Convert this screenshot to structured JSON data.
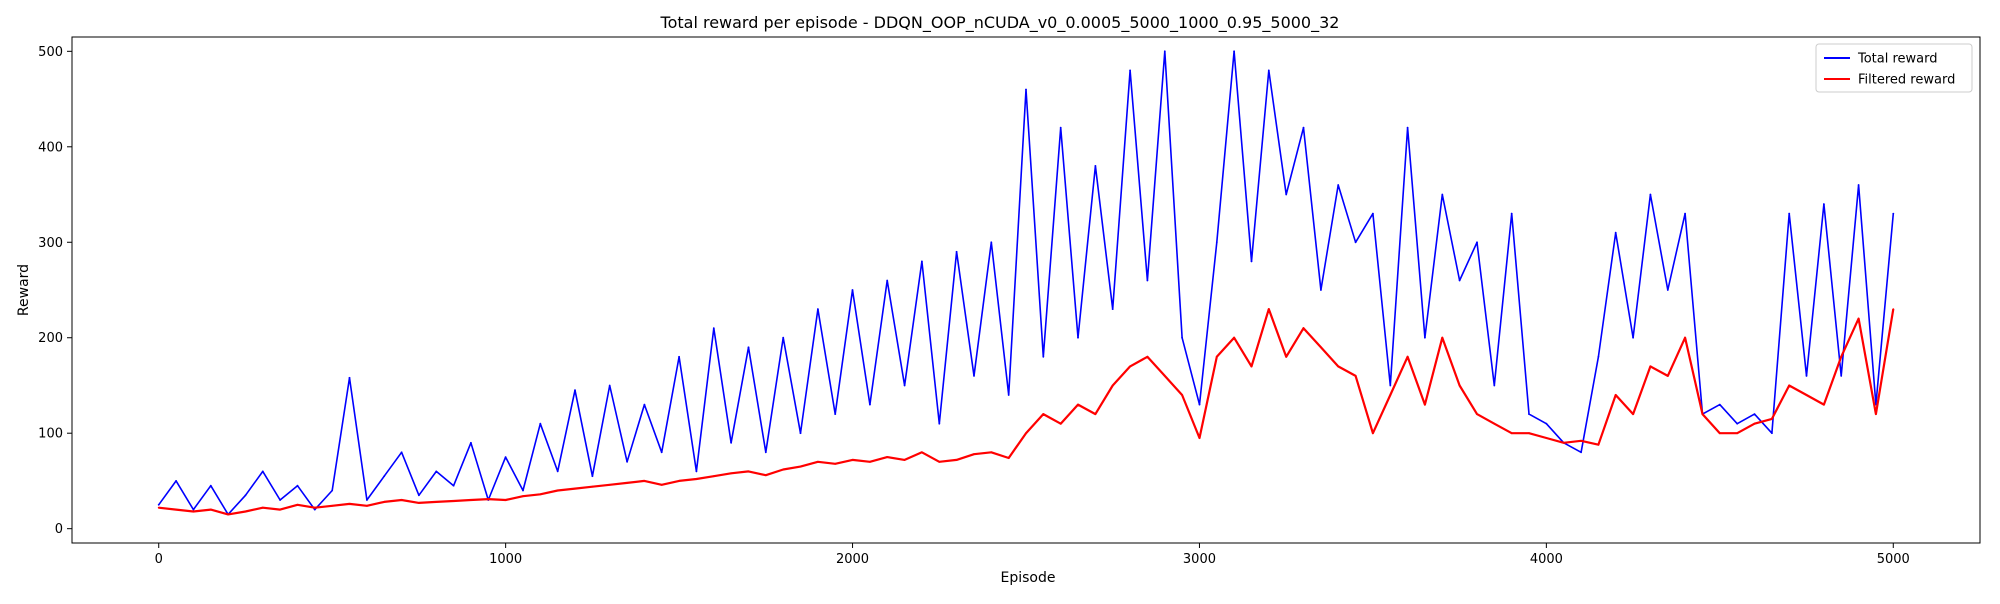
{
  "chart_data": {
    "type": "line",
    "title": "Total reward per episode - DDQN_OOP_nCUDA_v0_0.0005_5000_1000_0.95_5000_32",
    "xlabel": "Episode",
    "ylabel": "Reward",
    "xlim": [
      -250,
      5250
    ],
    "ylim": [
      -15,
      515
    ],
    "x_ticks": [
      0,
      1000,
      2000,
      3000,
      4000,
      5000
    ],
    "y_ticks": [
      0,
      100,
      200,
      300,
      400,
      500
    ],
    "grid": false,
    "legend_position": "top-right",
    "series": [
      {
        "name": "Total reward",
        "color": "#0000ff",
        "x": [
          0,
          50,
          100,
          150,
          200,
          250,
          300,
          350,
          400,
          450,
          500,
          550,
          600,
          650,
          700,
          750,
          800,
          850,
          900,
          950,
          1000,
          1050,
          1100,
          1150,
          1200,
          1250,
          1300,
          1350,
          1400,
          1450,
          1500,
          1550,
          1600,
          1650,
          1700,
          1750,
          1800,
          1850,
          1900,
          1950,
          2000,
          2050,
          2100,
          2150,
          2200,
          2250,
          2300,
          2350,
          2400,
          2450,
          2500,
          2550,
          2600,
          2650,
          2700,
          2750,
          2800,
          2850,
          2900,
          2950,
          3000,
          3050,
          3100,
          3150,
          3200,
          3250,
          3300,
          3350,
          3400,
          3450,
          3500,
          3550,
          3600,
          3650,
          3700,
          3750,
          3800,
          3850,
          3900,
          3950,
          4000,
          4050,
          4100,
          4150,
          4200,
          4250,
          4300,
          4350,
          4400,
          4450,
          4500,
          4550,
          4600,
          4650,
          4700,
          4750,
          4800,
          4850,
          4900,
          4950,
          5000
        ],
        "y": [
          25,
          50,
          20,
          45,
          15,
          35,
          60,
          30,
          45,
          20,
          40,
          158,
          30,
          55,
          80,
          35,
          60,
          45,
          90,
          30,
          75,
          40,
          110,
          60,
          145,
          55,
          150,
          70,
          130,
          80,
          180,
          60,
          210,
          90,
          190,
          80,
          200,
          100,
          230,
          120,
          250,
          130,
          260,
          150,
          280,
          110,
          290,
          160,
          300,
          140,
          460,
          180,
          420,
          200,
          380,
          230,
          480,
          260,
          500,
          200,
          130,
          300,
          500,
          280,
          480,
          350,
          420,
          250,
          360,
          300,
          330,
          150,
          420,
          200,
          350,
          260,
          300,
          150,
          330,
          120,
          110,
          90,
          80,
          180,
          310,
          200,
          350,
          250,
          330,
          120,
          130,
          110,
          120,
          100,
          330,
          160,
          340,
          160,
          360,
          130,
          330
        ]
      },
      {
        "name": "Filtered reward",
        "color": "#ff0000",
        "x": [
          0,
          50,
          100,
          150,
          200,
          250,
          300,
          350,
          400,
          450,
          500,
          550,
          600,
          650,
          700,
          750,
          800,
          850,
          900,
          950,
          1000,
          1050,
          1100,
          1150,
          1200,
          1250,
          1300,
          1350,
          1400,
          1450,
          1500,
          1550,
          1600,
          1650,
          1700,
          1750,
          1800,
          1850,
          1900,
          1950,
          2000,
          2050,
          2100,
          2150,
          2200,
          2250,
          2300,
          2350,
          2400,
          2450,
          2500,
          2550,
          2600,
          2650,
          2700,
          2750,
          2800,
          2850,
          2900,
          2950,
          3000,
          3050,
          3100,
          3150,
          3200,
          3250,
          3300,
          3350,
          3400,
          3450,
          3500,
          3550,
          3600,
          3650,
          3700,
          3750,
          3800,
          3850,
          3900,
          3950,
          4000,
          4050,
          4100,
          4150,
          4200,
          4250,
          4300,
          4350,
          4400,
          4450,
          4500,
          4550,
          4600,
          4650,
          4700,
          4750,
          4800,
          4850,
          4900,
          4950,
          5000
        ],
        "y": [
          22,
          20,
          18,
          20,
          15,
          18,
          22,
          20,
          25,
          22,
          24,
          26,
          24,
          28,
          30,
          27,
          28,
          29,
          30,
          31,
          30,
          34,
          36,
          40,
          42,
          44,
          46,
          48,
          50,
          46,
          50,
          52,
          55,
          58,
          60,
          56,
          62,
          65,
          70,
          68,
          72,
          70,
          75,
          72,
          80,
          70,
          72,
          78,
          80,
          74,
          100,
          120,
          110,
          130,
          120,
          150,
          170,
          180,
          160,
          140,
          95,
          180,
          200,
          170,
          230,
          180,
          210,
          190,
          170,
          160,
          100,
          140,
          180,
          130,
          200,
          150,
          120,
          110,
          100,
          100,
          95,
          90,
          92,
          88,
          140,
          120,
          170,
          160,
          200,
          120,
          100,
          100,
          110,
          115,
          150,
          140,
          130,
          180,
          220,
          120,
          230
        ]
      }
    ]
  }
}
